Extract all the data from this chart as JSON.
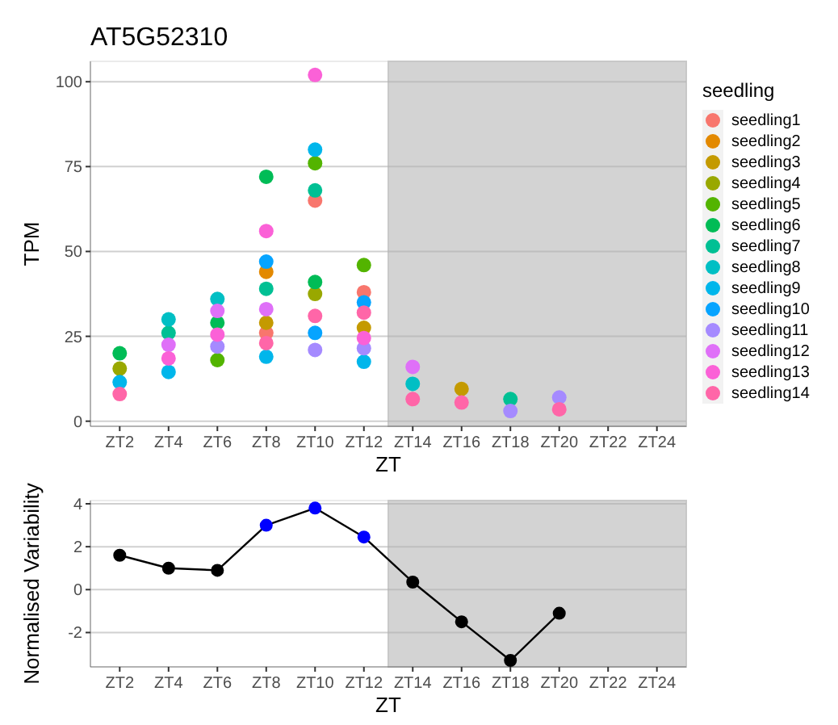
{
  "chart_data": [
    {
      "type": "scatter",
      "title": "AT5G52310",
      "xlabel": "ZT",
      "ylabel": "TPM",
      "legend_title": "seedling",
      "legend": "right",
      "grid": "y",
      "marker": "circle",
      "categories": [
        "ZT2",
        "ZT4",
        "ZT6",
        "ZT8",
        "ZT10",
        "ZT12",
        "ZT14",
        "ZT16",
        "ZT18",
        "ZT20",
        "ZT22",
        "ZT24"
      ],
      "ylim": [
        -1.5,
        106
      ],
      "yticks": [
        0,
        25,
        50,
        75,
        100
      ],
      "series": [
        {
          "name": "seedling1",
          "color": "#f8766d",
          "values": [
            null,
            null,
            null,
            26,
            65,
            38,
            null,
            null,
            null,
            null,
            null,
            null
          ]
        },
        {
          "name": "seedling2",
          "color": "#e38900",
          "values": [
            null,
            null,
            null,
            44,
            null,
            null,
            null,
            null,
            null,
            null,
            null,
            null
          ]
        },
        {
          "name": "seedling3",
          "color": "#c49a00",
          "values": [
            null,
            null,
            null,
            29,
            null,
            27.5,
            null,
            9.5,
            null,
            null,
            null,
            null
          ]
        },
        {
          "name": "seedling4",
          "color": "#99a800",
          "values": [
            15.5,
            null,
            null,
            null,
            37.5,
            null,
            null,
            null,
            null,
            null,
            null,
            null
          ]
        },
        {
          "name": "seedling5",
          "color": "#53b400",
          "values": [
            null,
            null,
            18,
            null,
            76,
            46,
            null,
            null,
            null,
            null,
            null,
            null
          ]
        },
        {
          "name": "seedling6",
          "color": "#00bc56",
          "values": [
            20,
            null,
            29,
            72,
            41,
            null,
            null,
            null,
            null,
            null,
            null,
            null
          ]
        },
        {
          "name": "seedling7",
          "color": "#00c094",
          "values": [
            null,
            26,
            null,
            39,
            68,
            null,
            null,
            null,
            6.5,
            null,
            null,
            null
          ]
        },
        {
          "name": "seedling8",
          "color": "#00bfc4",
          "values": [
            null,
            30,
            36,
            null,
            null,
            null,
            11,
            null,
            null,
            null,
            null,
            null
          ]
        },
        {
          "name": "seedling9",
          "color": "#00b6eb",
          "values": [
            11.5,
            14.5,
            null,
            19,
            80,
            17.5,
            null,
            null,
            null,
            null,
            null,
            null
          ]
        },
        {
          "name": "seedling10",
          "color": "#06a4ff",
          "values": [
            null,
            null,
            null,
            47,
            26,
            35,
            null,
            null,
            null,
            null,
            null,
            null
          ]
        },
        {
          "name": "seedling11",
          "color": "#a58aff",
          "values": [
            null,
            null,
            22,
            null,
            21,
            21.5,
            null,
            null,
            3,
            7,
            null,
            null
          ]
        },
        {
          "name": "seedling12",
          "color": "#df70f8",
          "values": [
            null,
            22.5,
            32.5,
            33,
            null,
            null,
            16,
            null,
            null,
            null,
            null,
            null
          ]
        },
        {
          "name": "seedling13",
          "color": "#fb61d7",
          "values": [
            null,
            18.5,
            25.5,
            56,
            102,
            24.5,
            null,
            null,
            null,
            null,
            null,
            null
          ]
        },
        {
          "name": "seedling14",
          "color": "#ff66a8",
          "values": [
            8,
            null,
            null,
            23,
            31,
            32,
            6.5,
            5.5,
            null,
            3.5,
            null,
            null
          ]
        }
      ]
    },
    {
      "type": "line",
      "xlabel": "ZT",
      "ylabel": "Normalised Variability",
      "grid": "y",
      "marker": "circle",
      "line_style": "solid",
      "categories": [
        "ZT2",
        "ZT4",
        "ZT6",
        "ZT8",
        "ZT10",
        "ZT12",
        "ZT14",
        "ZT16",
        "ZT18",
        "ZT20",
        "ZT22",
        "ZT24"
      ],
      "ylim": [
        -3.6,
        4.15
      ],
      "yticks": [
        -2,
        0,
        2,
        4
      ],
      "series": [
        {
          "color": "#000000",
          "colors": [
            "#000000",
            "#000000",
            "#000000",
            "#0000ff",
            "#0000ff",
            "#0000ff",
            "#000000",
            "#000000",
            "#000000",
            "#000000",
            null,
            null
          ],
          "values": [
            1.6,
            1.0,
            0.9,
            3.0,
            3.8,
            2.45,
            0.35,
            -1.5,
            -3.3,
            -1.1,
            null,
            null
          ]
        }
      ]
    }
  ]
}
